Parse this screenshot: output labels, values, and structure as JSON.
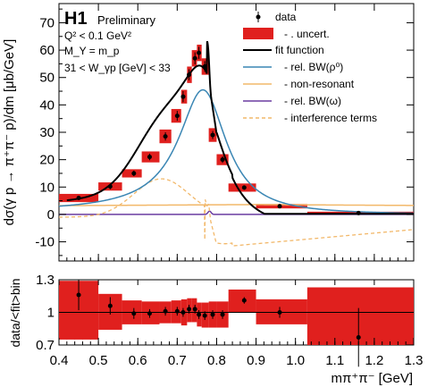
{
  "chart_data": [
    {
      "type": "scatter",
      "experiment": "H1",
      "experiment_status": "Preliminary",
      "cuts": [
        "Q² < 0.1 GeV²",
        "M_Y = m_p",
        "31 < W_γp [GeV] < 33"
      ],
      "ylabel": "dσ(γ p → π⁺π⁻ p)/dm [μb/GeV]",
      "xlim": [
        0.4,
        1.3
      ],
      "ylim": [
        -17,
        77
      ],
      "xticks": [
        0.4,
        0.5,
        0.6,
        0.7,
        0.8,
        0.9,
        1.0,
        1.1,
        1.2,
        1.3
      ],
      "yticks": [
        -10,
        0,
        10,
        20,
        30,
        40,
        50,
        60,
        70
      ],
      "legend_position": "top-right",
      "legend": [
        {
          "label": "data",
          "style": "marker",
          "color": "#000000"
        },
        {
          "label": "- . uncert.",
          "style": "box",
          "color": "#e0201e"
        },
        {
          "label": "fit function",
          "style": "line",
          "color": "#000000"
        },
        {
          "label": "- rel. BW(ρ⁰)",
          "style": "line",
          "color": "#3a86b4"
        },
        {
          "label": "- non-resonant",
          "style": "line",
          "color": "#f2b86a"
        },
        {
          "label": "- rel. BW(ω)",
          "style": "line",
          "color": "#6a3ca0"
        },
        {
          "label": "- interference terms",
          "style": "dashed",
          "color": "#f2b86a"
        }
      ],
      "data_points": [
        {
          "x": 0.45,
          "y": 6.0,
          "err": 0.8,
          "xlo": 0.4,
          "xhi": 0.5,
          "unc": 1.5
        },
        {
          "x": 0.53,
          "y": 10.2,
          "err": 1.0,
          "xlo": 0.5,
          "xhi": 0.56,
          "unc": 1.5
        },
        {
          "x": 0.59,
          "y": 15.0,
          "err": 1.0,
          "xlo": 0.56,
          "xhi": 0.61,
          "unc": 1.5
        },
        {
          "x": 0.63,
          "y": 21.0,
          "err": 1.2,
          "xlo": 0.61,
          "xhi": 0.655,
          "unc": 2.0
        },
        {
          "x": 0.67,
          "y": 28.5,
          "err": 1.5,
          "xlo": 0.655,
          "xhi": 0.685,
          "unc": 2.5
        },
        {
          "x": 0.7,
          "y": 36.0,
          "err": 1.8,
          "xlo": 0.685,
          "xhi": 0.71,
          "unc": 2.5
        },
        {
          "x": 0.715,
          "y": 43.0,
          "err": 2.0,
          "xlo": 0.71,
          "xhi": 0.725,
          "unc": 2.5
        },
        {
          "x": 0.73,
          "y": 51.0,
          "err": 2.0,
          "xlo": 0.725,
          "xhi": 0.737,
          "unc": 3.0
        },
        {
          "x": 0.745,
          "y": 57.0,
          "err": 2.2,
          "xlo": 0.737,
          "xhi": 0.75,
          "unc": 3.0
        },
        {
          "x": 0.755,
          "y": 59.0,
          "err": 2.2,
          "xlo": 0.75,
          "xhi": 0.762,
          "unc": 3.0
        },
        {
          "x": 0.77,
          "y": 54.0,
          "err": 2.0,
          "xlo": 0.762,
          "xhi": 0.78,
          "unc": 3.0
        },
        {
          "x": 0.79,
          "y": 29.0,
          "err": 1.5,
          "xlo": 0.78,
          "xhi": 0.8,
          "unc": 2.5
        },
        {
          "x": 0.815,
          "y": 20.0,
          "err": 1.2,
          "xlo": 0.8,
          "xhi": 0.83,
          "unc": 2.0
        },
        {
          "x": 0.87,
          "y": 9.8,
          "err": 0.8,
          "xlo": 0.83,
          "xhi": 0.9,
          "unc": 1.5
        },
        {
          "x": 0.96,
          "y": 3.0,
          "err": 0.5,
          "xlo": 0.9,
          "xhi": 1.03,
          "unc": 0.8
        },
        {
          "x": 1.16,
          "y": 0.5,
          "err": 0.4,
          "xlo": 1.03,
          "xhi": 1.3,
          "unc": 0.5
        }
      ]
    },
    {
      "type": "scatter",
      "ylabel": "data/<fit>bin",
      "xlabel": "mπ⁺π⁻ [GeV]",
      "xlim": [
        0.4,
        1.3
      ],
      "ylim": [
        0.7,
        1.3
      ],
      "yticks": [
        0.7,
        1,
        1.3
      ],
      "yticklabels": [
        "0.7",
        "1",
        "1.3"
      ],
      "reference_line": 1.0,
      "ratio_points": [
        {
          "x": 0.45,
          "y": 1.16,
          "err": 0.14,
          "xlo": 0.4,
          "xhi": 0.5,
          "lo": 0.75,
          "hi": 1.29
        },
        {
          "x": 0.53,
          "y": 1.06,
          "err": 0.08,
          "xlo": 0.5,
          "xhi": 0.56,
          "lo": 0.84,
          "hi": 1.17
        },
        {
          "x": 0.59,
          "y": 0.99,
          "err": 0.05,
          "xlo": 0.56,
          "xhi": 0.61,
          "lo": 0.89,
          "hi": 1.11
        },
        {
          "x": 0.63,
          "y": 0.99,
          "err": 0.04,
          "xlo": 0.61,
          "xhi": 0.655,
          "lo": 0.89,
          "hi": 1.1
        },
        {
          "x": 0.67,
          "y": 1.01,
          "err": 0.04,
          "xlo": 0.655,
          "xhi": 0.685,
          "lo": 0.9,
          "hi": 1.1
        },
        {
          "x": 0.7,
          "y": 1.01,
          "err": 0.04,
          "xlo": 0.685,
          "xhi": 0.71,
          "lo": 0.9,
          "hi": 1.11
        },
        {
          "x": 0.715,
          "y": 1.0,
          "err": 0.04,
          "xlo": 0.71,
          "xhi": 0.725,
          "lo": 0.88,
          "hi": 1.12
        },
        {
          "x": 0.73,
          "y": 1.03,
          "err": 0.04,
          "xlo": 0.725,
          "xhi": 0.737,
          "lo": 0.91,
          "hi": 1.13
        },
        {
          "x": 0.745,
          "y": 1.03,
          "err": 0.04,
          "xlo": 0.737,
          "xhi": 0.75,
          "lo": 0.91,
          "hi": 1.13
        },
        {
          "x": 0.755,
          "y": 0.98,
          "err": 0.04,
          "xlo": 0.75,
          "xhi": 0.762,
          "lo": 0.87,
          "hi": 1.09
        },
        {
          "x": 0.77,
          "y": 0.97,
          "err": 0.04,
          "xlo": 0.762,
          "xhi": 0.78,
          "lo": 0.86,
          "hi": 1.09
        },
        {
          "x": 0.79,
          "y": 0.98,
          "err": 0.04,
          "xlo": 0.78,
          "xhi": 0.8,
          "lo": 0.86,
          "hi": 1.1
        },
        {
          "x": 0.815,
          "y": 0.98,
          "err": 0.04,
          "xlo": 0.8,
          "xhi": 0.83,
          "lo": 0.86,
          "hi": 1.1
        },
        {
          "x": 0.87,
          "y": 1.11,
          "err": 0.03,
          "xlo": 0.83,
          "xhi": 0.9,
          "lo": 1.0,
          "hi": 1.21
        },
        {
          "x": 0.96,
          "y": 1.0,
          "err": 0.05,
          "xlo": 0.9,
          "xhi": 1.03,
          "lo": 0.89,
          "hi": 1.12
        },
        {
          "x": 1.16,
          "y": 0.77,
          "err": 0.27,
          "xlo": 1.03,
          "xhi": 1.3,
          "lo": 0.7,
          "hi": 1.23
        }
      ]
    }
  ],
  "colors": {
    "uncertainty": "#e0201e",
    "rho": "#3a86b4",
    "nonresonant": "#f2b86a",
    "omega": "#6a3ca0",
    "interference": "#f2b86a",
    "fit": "#000000"
  }
}
